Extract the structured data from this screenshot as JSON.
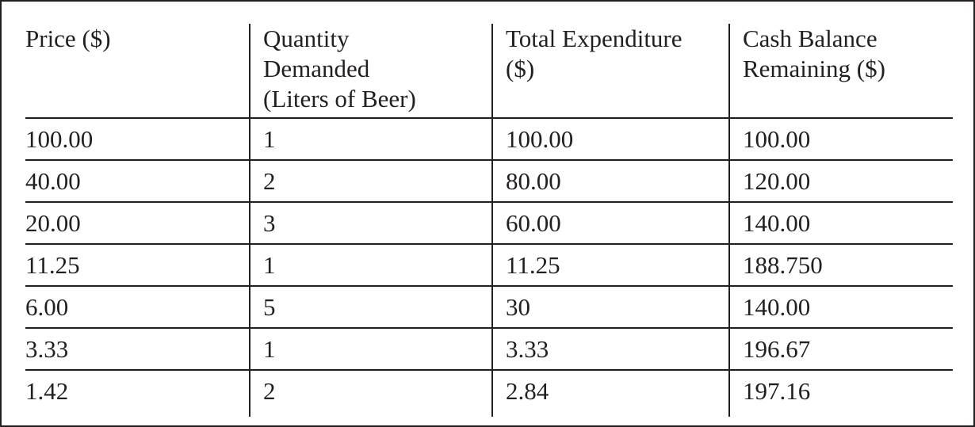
{
  "table": {
    "headers": [
      "Price ($)",
      "Quantity Demanded (Liters of Beer)",
      "Total Expenditure ($)",
      "Cash Balance Remaining ($)"
    ],
    "header_lines": [
      [
        "Price ($)"
      ],
      [
        "Quantity",
        "Demanded",
        "(Liters of Beer)"
      ],
      [
        "Total Expenditure",
        "($)"
      ],
      [
        "Cash Balance",
        "Remaining ($)"
      ]
    ],
    "rows": [
      [
        "100.00",
        "1",
        "100.00",
        "100.00"
      ],
      [
        "40.00",
        "2",
        "80.00",
        "120.00"
      ],
      [
        "20.00",
        "3",
        "60.00",
        "140.00"
      ],
      [
        "11.25",
        "1",
        "11.25",
        "188.750"
      ],
      [
        "6.00",
        "5",
        "30",
        "140.00"
      ],
      [
        "3.33",
        "1",
        "3.33",
        "196.67"
      ],
      [
        "1.42",
        "2",
        "2.84",
        "197.16"
      ]
    ]
  }
}
